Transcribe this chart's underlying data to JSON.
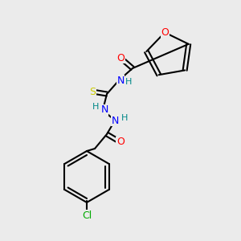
{
  "background_color": "#ebebeb",
  "bond_color": "#000000",
  "bond_lw": 1.5,
  "atom_colors": {
    "O": "#ff0000",
    "N": "#0000ff",
    "S": "#cccc00",
    "Cl": "#00aa00",
    "H": "#008888"
  },
  "font_size": 9,
  "font_size_small": 8
}
